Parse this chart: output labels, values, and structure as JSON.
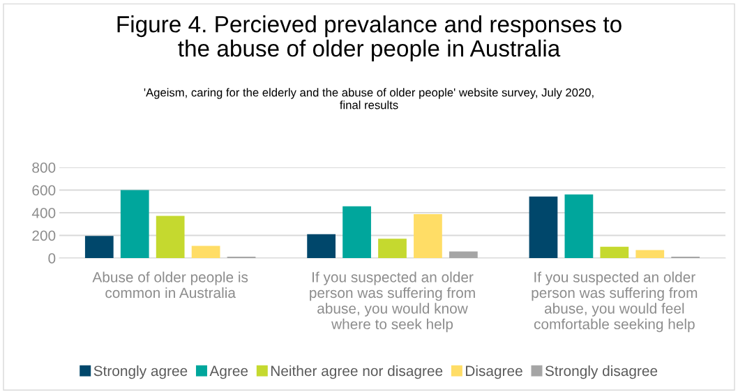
{
  "chart_data": {
    "type": "bar",
    "title": "Figure 4. Percieved prevalance and responses to\nthe abuse of older people in Australia",
    "subtitle": "'Ageism, caring for the elderly and the abuse of older people' website survey, July 2020,\nfinal results",
    "categories": [
      "Abuse of older people is\ncommon in Australia",
      "If you suspected an older\nperson was suffering from\nabuse, you would know\nwhere to seek help",
      "If you suspected an older\nperson was suffering from\nabuse, you would feel\ncomfortable seeking help"
    ],
    "series": [
      {
        "name": "Strongly agree",
        "color": "#00476b",
        "values": [
          195,
          211,
          543
        ]
      },
      {
        "name": "Agree",
        "color": "#00a69c",
        "values": [
          600,
          457,
          561
        ]
      },
      {
        "name": "Neither agree nor disagree",
        "color": "#c5d92f",
        "values": [
          372,
          170,
          100
        ]
      },
      {
        "name": "Disagree",
        "color": "#ffdd66",
        "values": [
          107,
          387,
          70
        ]
      },
      {
        "name": "Strongly disagree",
        "color": "#a5a5a5",
        "values": [
          13,
          59,
          13
        ]
      }
    ],
    "ylim": [
      0,
      800
    ],
    "yticks": [
      0,
      200,
      400,
      600,
      800
    ],
    "grid": "y",
    "legend": "bottom"
  }
}
